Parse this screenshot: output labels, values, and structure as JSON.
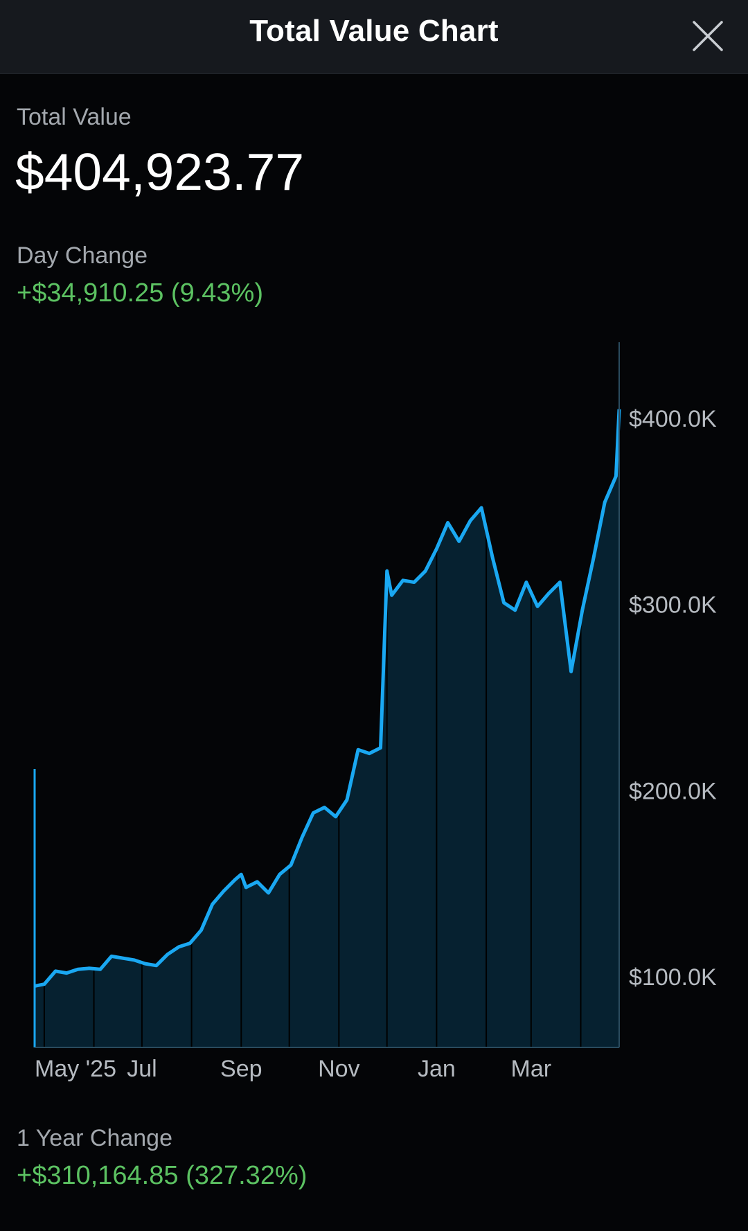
{
  "header": {
    "title": "Total Value Chart",
    "close_icon": "close-icon"
  },
  "total": {
    "label": "Total Value",
    "value": "$404,923.77"
  },
  "day_change": {
    "label": "Day Change",
    "value": "+$34,910.25 (9.43%)"
  },
  "year_change": {
    "label": "1 Year Change",
    "value": "+$310,164.85 (327.32%)"
  },
  "colors": {
    "line": "#1aa8f2",
    "area": "#062130",
    "positive": "#5cc262",
    "background": "#040507"
  },
  "chart_data": {
    "type": "area",
    "title": "",
    "xlabel": "",
    "ylabel": "",
    "x_ticks": [
      {
        "label": "May '25",
        "date": "2025-05-01"
      },
      {
        "label": "Jul",
        "date": "2025-07-01"
      },
      {
        "label": "Sep",
        "date": "2025-09-01"
      },
      {
        "label": "Nov",
        "date": "2025-11-01"
      },
      {
        "label": "Jan",
        "date": "2026-01-01"
      },
      {
        "label": "Mar",
        "date": "2026-03-01"
      }
    ],
    "y_ticks": [
      {
        "label": "$100.0K",
        "value": 100000
      },
      {
        "label": "$200.0K",
        "value": 200000
      },
      {
        "label": "$300.0K",
        "value": 300000
      },
      {
        "label": "$400.0K",
        "value": 400000
      }
    ],
    "xlim": [
      "2025-04-25",
      "2026-04-25"
    ],
    "ylim": [
      62000,
      438000
    ],
    "grid": false,
    "legend": "none",
    "series": [
      {
        "x": [
          "2025-04-25",
          "2025-05-01",
          "2025-05-08",
          "2025-05-15",
          "2025-05-22",
          "2025-05-29",
          "2025-06-05",
          "2025-06-12",
          "2025-06-19",
          "2025-06-26",
          "2025-07-03",
          "2025-07-10",
          "2025-07-17",
          "2025-07-24",
          "2025-07-31",
          "2025-08-07",
          "2025-08-14",
          "2025-08-21",
          "2025-08-28",
          "2025-09-01",
          "2025-09-04",
          "2025-09-11",
          "2025-09-18",
          "2025-09-25",
          "2025-10-02",
          "2025-10-09",
          "2025-10-16",
          "2025-10-23",
          "2025-10-30",
          "2025-11-06",
          "2025-11-13",
          "2025-11-20",
          "2025-11-27",
          "2025-12-01",
          "2025-12-04",
          "2025-12-11",
          "2025-12-18",
          "2025-12-25",
          "2026-01-01",
          "2026-01-08",
          "2026-01-15",
          "2026-01-22",
          "2026-01-29",
          "2026-02-05",
          "2026-02-12",
          "2026-02-19",
          "2026-02-26",
          "2026-03-05",
          "2026-03-12",
          "2026-03-19",
          "2026-03-26",
          "2026-04-02",
          "2026-04-09",
          "2026-04-16",
          "2026-04-23",
          "2026-04-25"
        ],
        "values": [
          95000,
          96000,
          103000,
          102000,
          104000,
          104500,
          104000,
          111000,
          110000,
          109000,
          107000,
          106000,
          112000,
          116000,
          118000,
          125000,
          139000,
          146000,
          152000,
          155000,
          148000,
          151000,
          145000,
          155000,
          160000,
          175000,
          188000,
          191000,
          186000,
          195000,
          222000,
          220000,
          223000,
          318000,
          305000,
          313000,
          312000,
          318000,
          330000,
          344000,
          334000,
          345000,
          352000,
          325000,
          301000,
          297000,
          312000,
          299000,
          306000,
          312000,
          264000,
          297000,
          325000,
          355000,
          369000,
          404924
        ]
      }
    ]
  }
}
